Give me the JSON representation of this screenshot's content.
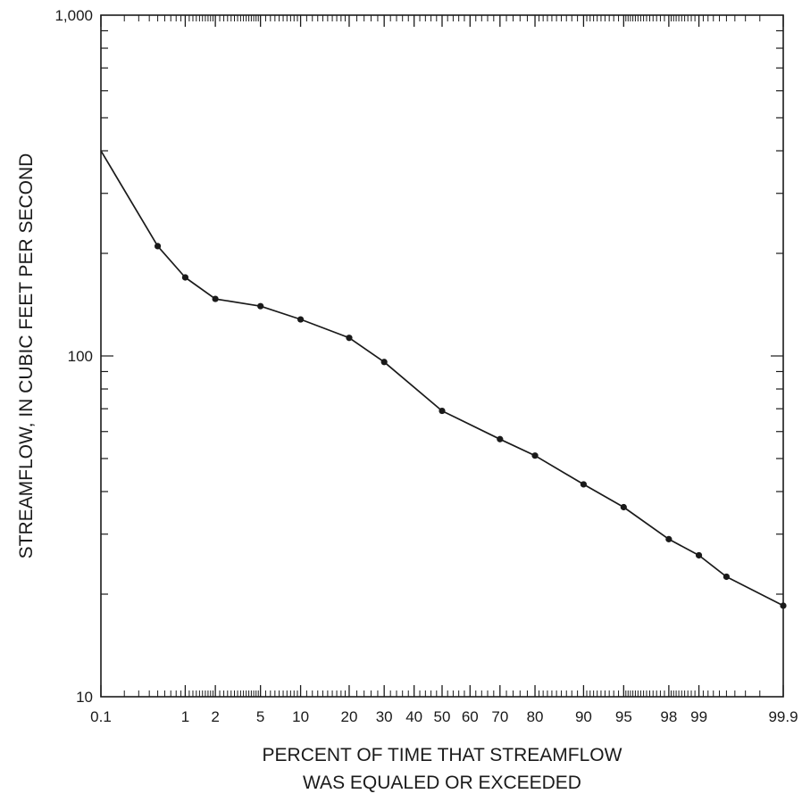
{
  "chart_data": {
    "type": "line",
    "title": "",
    "xlabel": [
      "PERCENT OF TIME THAT STREAMFLOW",
      "WAS EQUALED OR EXCEEDED"
    ],
    "ylabel": "STREAMFLOW, IN CUBIC FEET PER SECOND",
    "x_scale": "probability",
    "y_scale": "log",
    "xlim": [
      0.1,
      99.9
    ],
    "ylim": [
      10,
      1000
    ],
    "x_ticks": [
      0.1,
      1,
      2,
      5,
      10,
      20,
      30,
      40,
      50,
      60,
      70,
      80,
      90,
      95,
      98,
      99,
      99.9
    ],
    "x_tick_labels": [
      "0.1",
      "1",
      "2",
      "5",
      "10",
      "20",
      "30",
      "40",
      "50",
      "60",
      "70",
      "80",
      "90",
      "95",
      "98",
      "99",
      "99.9"
    ],
    "y_ticks": [
      10,
      100,
      1000
    ],
    "y_tick_labels": [
      "10",
      "100",
      "1,000"
    ],
    "grid": false,
    "series": [
      {
        "x": [
          0.1,
          0.5,
          1,
          2,
          5,
          10,
          20,
          30,
          50,
          70,
          80,
          90,
          95,
          98,
          99,
          99.5,
          99.9
        ],
        "y": [
          400,
          210,
          170,
          147,
          140,
          128,
          113,
          96,
          69,
          57,
          51,
          42,
          36,
          29,
          26,
          22.5,
          18.5
        ]
      }
    ]
  }
}
